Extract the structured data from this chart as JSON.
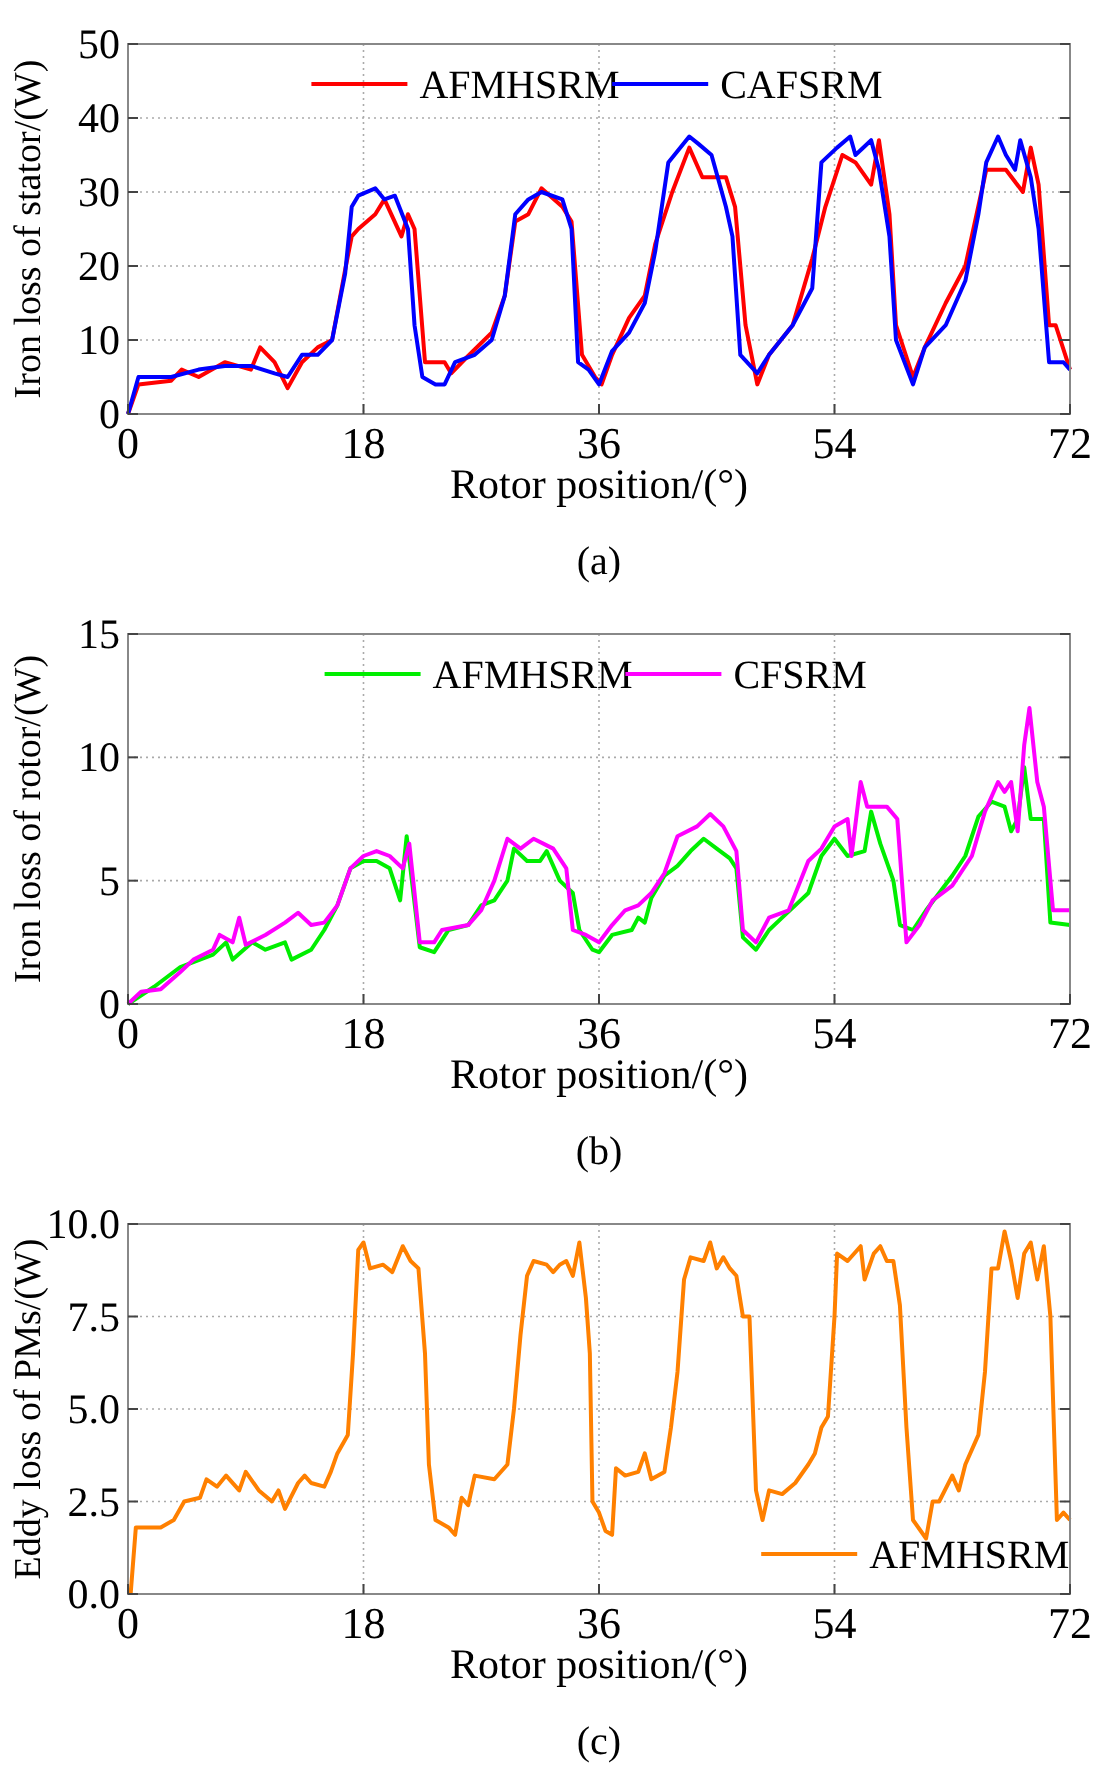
{
  "chart_data": [
    {
      "type": "line",
      "title": "(a)",
      "xlabel": "Rotor position/(°)",
      "ylabel": "Iron loss of stator/(W)",
      "xlim": [
        0,
        72
      ],
      "ylim": [
        0,
        50
      ],
      "xticks": [
        0,
        18,
        36,
        54,
        72
      ],
      "yticks": [
        0,
        10,
        20,
        30,
        40,
        50
      ],
      "grid": true,
      "legend": "top",
      "marker": "none",
      "line_style": "solid",
      "series": [
        {
          "name": "AFMHSRM",
          "color": "#ff0000",
          "x": [
            0,
            0.8,
            3.3,
            4.1,
            5.4,
            7.4,
            9.4,
            10.1,
            11.2,
            12.2,
            13.3,
            14.5,
            15.6,
            16.6,
            17.1,
            17.6,
            18.9,
            19.6,
            20.9,
            21.4,
            21.9,
            22.7,
            24.2,
            24.7,
            25.8,
            27.8,
            28.8,
            29.6,
            30.6,
            31.6,
            33.2,
            33.9,
            34.7,
            35.7,
            36.2,
            37,
            38.3,
            39.5,
            40.3,
            41.6,
            42.9,
            43.9,
            45.7,
            46.4,
            47.2,
            48.1,
            49,
            50.8,
            52.3,
            53.3,
            54.6,
            55.6,
            56.8,
            57.4,
            58.2,
            58.7,
            60,
            60.9,
            62.5,
            64,
            65.6,
            67.1,
            68.4,
            69,
            69.6,
            70.4,
            70.9,
            72
          ],
          "values": [
            0,
            4,
            4.5,
            6,
            5,
            7,
            6,
            9,
            7,
            3.5,
            7,
            9,
            10,
            19.5,
            24,
            25,
            27,
            29,
            24,
            27,
            25,
            7,
            7,
            5.5,
            7.5,
            11,
            16,
            26,
            27,
            30.5,
            28,
            26,
            8,
            5,
            4,
            8,
            13,
            16,
            23,
            30,
            36,
            32,
            32,
            28,
            12,
            4,
            8,
            12,
            21,
            28,
            35,
            34,
            31,
            37,
            27,
            12,
            5,
            9,
            15,
            20,
            33,
            33,
            30,
            36,
            31,
            12,
            12,
            6
          ]
        },
        {
          "name": "CAFSRM",
          "color": "#0000ff",
          "x": [
            0,
            0.8,
            3.3,
            5.4,
            7.4,
            9.4,
            11.2,
            12.2,
            13.3,
            14.5,
            15.6,
            16.6,
            17.1,
            17.6,
            18.9,
            19.6,
            20.4,
            21.4,
            21.9,
            22.5,
            23.5,
            24.2,
            25,
            26.5,
            27.8,
            28.8,
            29.6,
            30.6,
            31.6,
            33.2,
            33.9,
            34.4,
            35.2,
            36,
            37,
            38.3,
            39.5,
            40.3,
            41.3,
            42.9,
            43.6,
            44.6,
            45.7,
            46.2,
            46.8,
            48.1,
            49,
            50.8,
            52.3,
            53,
            54.2,
            55.2,
            55.6,
            56.8,
            57.4,
            58.2,
            58.7,
            60,
            60.9,
            62.5,
            64,
            65,
            65.6,
            66.5,
            67.1,
            67.8,
            68.2,
            69,
            69.6,
            70.4,
            71.5,
            72
          ],
          "values": [
            0,
            5,
            5,
            6,
            6.5,
            6.5,
            5.5,
            5,
            8,
            8,
            10,
            19,
            28,
            29.5,
            30.5,
            29,
            29.5,
            25,
            12,
            5,
            4,
            4,
            7,
            8,
            10,
            16,
            27,
            29,
            30,
            29,
            25,
            7,
            6,
            4,
            8.5,
            11,
            15,
            22,
            34,
            37.5,
            36.5,
            35,
            28,
            24,
            8,
            5.5,
            8,
            12,
            17,
            34,
            36,
            37.5,
            35,
            37,
            33,
            24,
            10,
            4,
            9,
            12,
            18,
            27,
            34,
            37.5,
            35,
            33,
            37,
            32,
            25,
            7,
            7,
            6
          ]
        }
      ]
    },
    {
      "type": "line",
      "title": "(b)",
      "xlabel": "Rotor position/(°)",
      "ylabel": "Iron loss of rotor/(W)",
      "xlim": [
        0,
        72
      ],
      "ylim": [
        0,
        15
      ],
      "xticks": [
        0,
        18,
        36,
        54,
        72
      ],
      "yticks": [
        0,
        5,
        10,
        15
      ],
      "grid": true,
      "legend": "top",
      "marker": "none",
      "line_style": "solid",
      "series": [
        {
          "name": "AFMHSRM",
          "color": "#00ee00",
          "x": [
            0,
            2,
            4,
            5,
            6.5,
            7.5,
            8,
            9.5,
            10.5,
            12,
            12.5,
            14,
            15,
            16,
            17,
            18,
            19,
            20,
            20.8,
            21.3,
            21.7,
            22.3,
            23.4,
            24.5,
            26,
            27,
            28,
            29,
            29.5,
            30.5,
            31.5,
            32,
            33,
            34,
            34.5,
            35.5,
            36,
            37,
            38.5,
            39,
            39.5,
            40,
            41,
            42,
            43,
            44,
            45,
            46,
            46.5,
            47,
            48,
            49,
            50,
            51,
            52,
            53,
            54,
            55,
            56.3,
            56.8,
            57.5,
            58.5,
            59,
            60,
            61,
            62,
            63,
            64,
            65,
            66,
            67,
            67.5,
            68,
            68.5,
            69,
            70,
            70.5,
            72
          ],
          "values": [
            0,
            0.7,
            1.5,
            1.7,
            2,
            2.5,
            1.8,
            2.5,
            2.2,
            2.5,
            1.8,
            2.2,
            3,
            4,
            5.5,
            5.8,
            5.8,
            5.5,
            4.2,
            6.8,
            5,
            2.3,
            2.1,
            3,
            3.2,
            4,
            4.2,
            5,
            6.3,
            5.8,
            5.8,
            6.2,
            5,
            4.5,
            3,
            2.2,
            2.1,
            2.8,
            3,
            3.5,
            3.3,
            4.3,
            5.2,
            5.6,
            6.2,
            6.7,
            6.3,
            5.9,
            5.5,
            2.7,
            2.2,
            3,
            3.5,
            4,
            4.5,
            6,
            6.7,
            6,
            6.2,
            7.8,
            6.5,
            5,
            3.2,
            3,
            3.8,
            4.5,
            5.2,
            6,
            7.6,
            8.2,
            8,
            7,
            7.5,
            9.6,
            7.5,
            7.5,
            3.3,
            3.2
          ]
        },
        {
          "name": "CFSRM",
          "color": "#ff00ff",
          "x": [
            0,
            1,
            2.5,
            4,
            5,
            6.5,
            7,
            8,
            8.5,
            9,
            10.5,
            12,
            13,
            14,
            15,
            16,
            17,
            18,
            19,
            20,
            21,
            21.5,
            22.3,
            23.4,
            24,
            26,
            27,
            28,
            29,
            30,
            31,
            32.5,
            33.5,
            34,
            35,
            36,
            37,
            38,
            39,
            40,
            41,
            42,
            43.5,
            44.5,
            45.5,
            46.5,
            47,
            48,
            49,
            50.5,
            52,
            53,
            54,
            55,
            55.3,
            56,
            56.5,
            58,
            58.8,
            59.5,
            60.5,
            61.5,
            63,
            64.5,
            65.5,
            66.5,
            67,
            67.5,
            68,
            68.5,
            68.9,
            69.5,
            70,
            70.7,
            72
          ],
          "values": [
            0,
            0.5,
            0.6,
            1.3,
            1.8,
            2.2,
            2.8,
            2.5,
            3.5,
            2.4,
            2.8,
            3.3,
            3.7,
            3.2,
            3.3,
            4,
            5.5,
            6,
            6.2,
            6,
            5.5,
            6.5,
            2.5,
            2.5,
            3,
            3.2,
            3.8,
            5,
            6.7,
            6.3,
            6.7,
            6.3,
            5.5,
            3,
            2.8,
            2.5,
            3.2,
            3.8,
            4,
            4.5,
            5.3,
            6.8,
            7.2,
            7.7,
            7.2,
            6.2,
            3,
            2.5,
            3.5,
            3.8,
            5.8,
            6.3,
            7.2,
            7.5,
            6,
            9,
            8,
            8,
            7.5,
            2.5,
            3.2,
            4.2,
            4.8,
            6,
            7.8,
            9,
            8.6,
            9,
            7,
            10.5,
            12,
            9,
            8,
            3.8,
            3.8
          ]
        }
      ]
    },
    {
      "type": "line",
      "title": "(c)",
      "xlabel": "Rotor position/(°)",
      "ylabel": "Eddy loss of PMs/(W)",
      "xlim": [
        0,
        72
      ],
      "ylim": [
        0,
        10
      ],
      "xticks": [
        0,
        18,
        36,
        54,
        72
      ],
      "yticks": [
        {
          "value": 0,
          "label": "0.0"
        },
        {
          "value": 2.5,
          "label": "2.5"
        },
        {
          "value": 5,
          "label": "5.0"
        },
        {
          "value": 7.5,
          "label": "7.5"
        },
        {
          "value": 10,
          "label": "10.0"
        }
      ],
      "grid": true,
      "legend": "bottom right",
      "marker": "none",
      "line_style": "solid",
      "series": [
        {
          "name": "AFMHSRM",
          "color": "#ff8000",
          "x": [
            0.2,
            0.6,
            2.5,
            3.5,
            4.3,
            5.5,
            6,
            6.8,
            7.5,
            8.5,
            9,
            10,
            11,
            11.5,
            12,
            13,
            13.5,
            14,
            15,
            15.5,
            16,
            16.8,
            17.2,
            17.6,
            18,
            18.5,
            19.5,
            20.2,
            21,
            21.6,
            22.2,
            22.7,
            23,
            23.5,
            24.5,
            25,
            25.5,
            26,
            26.5,
            28,
            29,
            29.5,
            30,
            30.5,
            31,
            32,
            32.5,
            33,
            33.5,
            34,
            34.5,
            35,
            35.3,
            35.5,
            36,
            36.5,
            37,
            37.3,
            38,
            39,
            39.5,
            40,
            41,
            41.5,
            42,
            42.5,
            43,
            44,
            44.5,
            45,
            45.5,
            46,
            46.5,
            47,
            47.5,
            48,
            48.5,
            49,
            50,
            51,
            52,
            52.5,
            53,
            53.5,
            54,
            54.2,
            55,
            56,
            56.3,
            57,
            57.5,
            58,
            58.5,
            59,
            59.5,
            60,
            61,
            61.5,
            62,
            63,
            63.5,
            64,
            65,
            65.5,
            66,
            66.5,
            67,
            67.5,
            68,
            68.5,
            69,
            69.5,
            70,
            70.5,
            71,
            71.5,
            72
          ],
          "values": [
            0,
            1.8,
            1.8,
            2,
            2.5,
            2.6,
            3.1,
            2.9,
            3.2,
            2.8,
            3.3,
            2.8,
            2.5,
            2.8,
            2.3,
            3,
            3.2,
            3,
            2.9,
            3.3,
            3.8,
            4.3,
            6.5,
            9.3,
            9.5,
            8.8,
            8.9,
            8.7,
            9.4,
            9,
            8.8,
            6.5,
            3.5,
            2,
            1.8,
            1.6,
            2.6,
            2.4,
            3.2,
            3.1,
            3.5,
            5,
            7,
            8.6,
            9,
            8.9,
            8.7,
            8.9,
            9,
            8.6,
            9.5,
            8,
            6.5,
            2.5,
            2.2,
            1.7,
            1.6,
            3.4,
            3.2,
            3.3,
            3.8,
            3.1,
            3.3,
            4.5,
            6,
            8.5,
            9.1,
            9,
            9.5,
            8.8,
            9.1,
            8.8,
            8.6,
            7.5,
            7.5,
            2.8,
            2,
            2.8,
            2.7,
            3,
            3.5,
            3.8,
            4.5,
            4.8,
            7.5,
            9.2,
            9,
            9.4,
            8.5,
            9.2,
            9.4,
            9,
            9,
            7.8,
            4.5,
            2,
            1.5,
            2.5,
            2.5,
            3.2,
            2.8,
            3.5,
            4.3,
            6,
            8.8,
            8.8,
            9.8,
            9,
            8,
            9.2,
            9.5,
            8.5,
            9.4,
            7.5,
            2,
            2.2,
            2
          ]
        }
      ]
    }
  ]
}
